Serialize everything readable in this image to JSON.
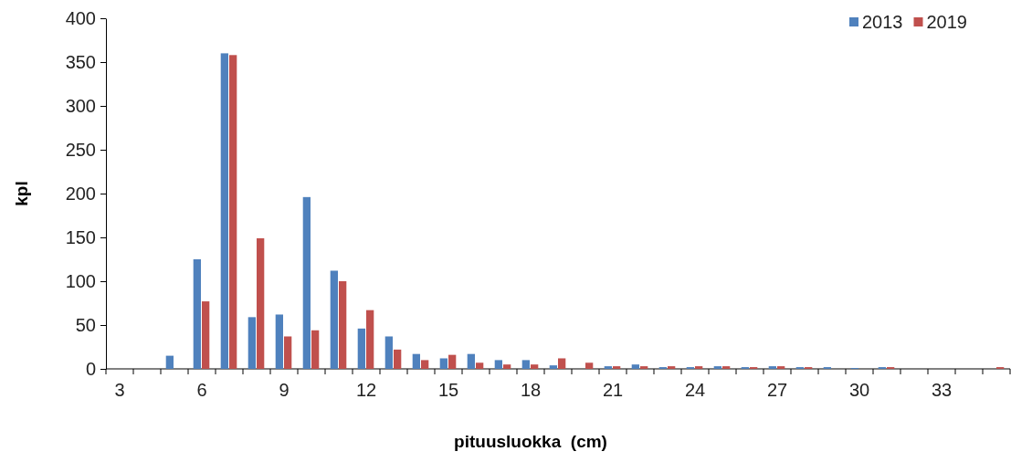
{
  "chart_data": {
    "type": "bar",
    "xlabel": "pituusluokka  (cm)",
    "ylabel": "kpl",
    "categories": [
      "3",
      null,
      null,
      "6",
      null,
      null,
      "9",
      null,
      null,
      "12",
      null,
      null,
      "15",
      null,
      null,
      "18",
      null,
      null,
      "21",
      null,
      null,
      "24",
      null,
      null,
      "27",
      null,
      null,
      "30",
      null,
      null,
      "33",
      null,
      null
    ],
    "series": [
      {
        "name": "2013",
        "color": "#4f81bd",
        "values": [
          0,
          0,
          15,
          125,
          360,
          59,
          62,
          196,
          112,
          46,
          37,
          17,
          12,
          17,
          10,
          10,
          4,
          0,
          3,
          5,
          2,
          2,
          3,
          2,
          3,
          2,
          2,
          1,
          2,
          0,
          0,
          0,
          0
        ]
      },
      {
        "name": "2019",
        "color": "#c0504d",
        "values": [
          0,
          0,
          0,
          77,
          358,
          149,
          37,
          44,
          100,
          67,
          22,
          10,
          16,
          7,
          5,
          5,
          12,
          7,
          3,
          3,
          3,
          3,
          3,
          2,
          3,
          2,
          0,
          0,
          2,
          0,
          0,
          0,
          2
        ]
      }
    ],
    "ylim": [
      0,
      400
    ],
    "yticks": [
      0,
      50,
      100,
      150,
      200,
      250,
      300,
      350,
      400
    ],
    "grid": false,
    "legend": "top right"
  }
}
